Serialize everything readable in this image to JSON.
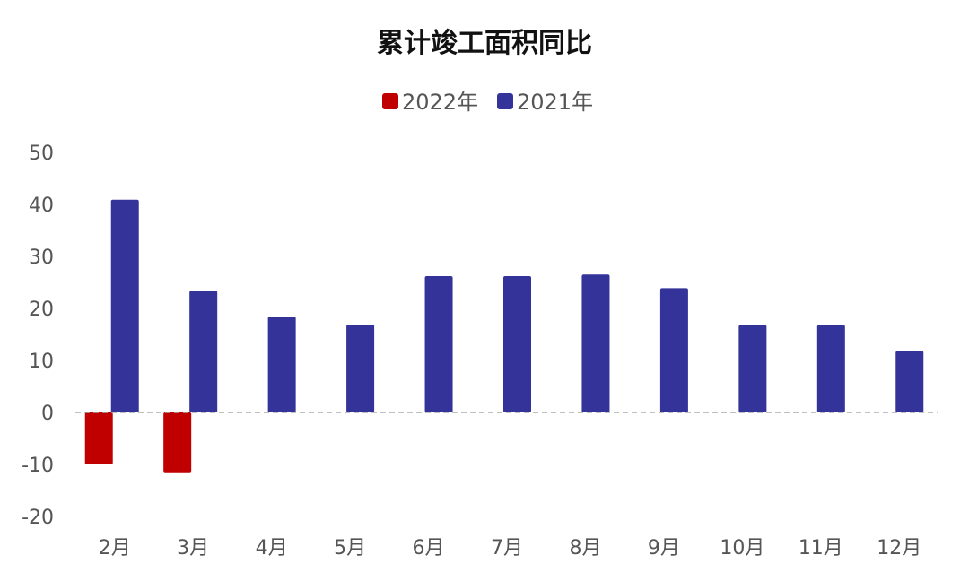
{
  "chart_data": {
    "type": "bar",
    "title": "累计竣工面积同比",
    "categories": [
      "2月",
      "3月",
      "4月",
      "5月",
      "6月",
      "7月",
      "8月",
      "9月",
      "10月",
      "11月",
      "12月"
    ],
    "series": [
      {
        "name": "2022年",
        "color": "#c00000",
        "values": [
          -10,
          -11.5,
          null,
          null,
          null,
          null,
          null,
          null,
          null,
          null,
          null
        ]
      },
      {
        "name": "2021年",
        "color": "#333399",
        "values": [
          40.9,
          23.4,
          18.4,
          16.9,
          26.2,
          26.2,
          26.5,
          23.9,
          16.8,
          16.8,
          11.8
        ]
      }
    ],
    "ylim": [
      -20,
      50
    ],
    "yticks": [
      50,
      40,
      30,
      20,
      10,
      0,
      -10,
      -20
    ],
    "grid": false,
    "zero_line": "dashed",
    "legend_position": "top-center"
  }
}
